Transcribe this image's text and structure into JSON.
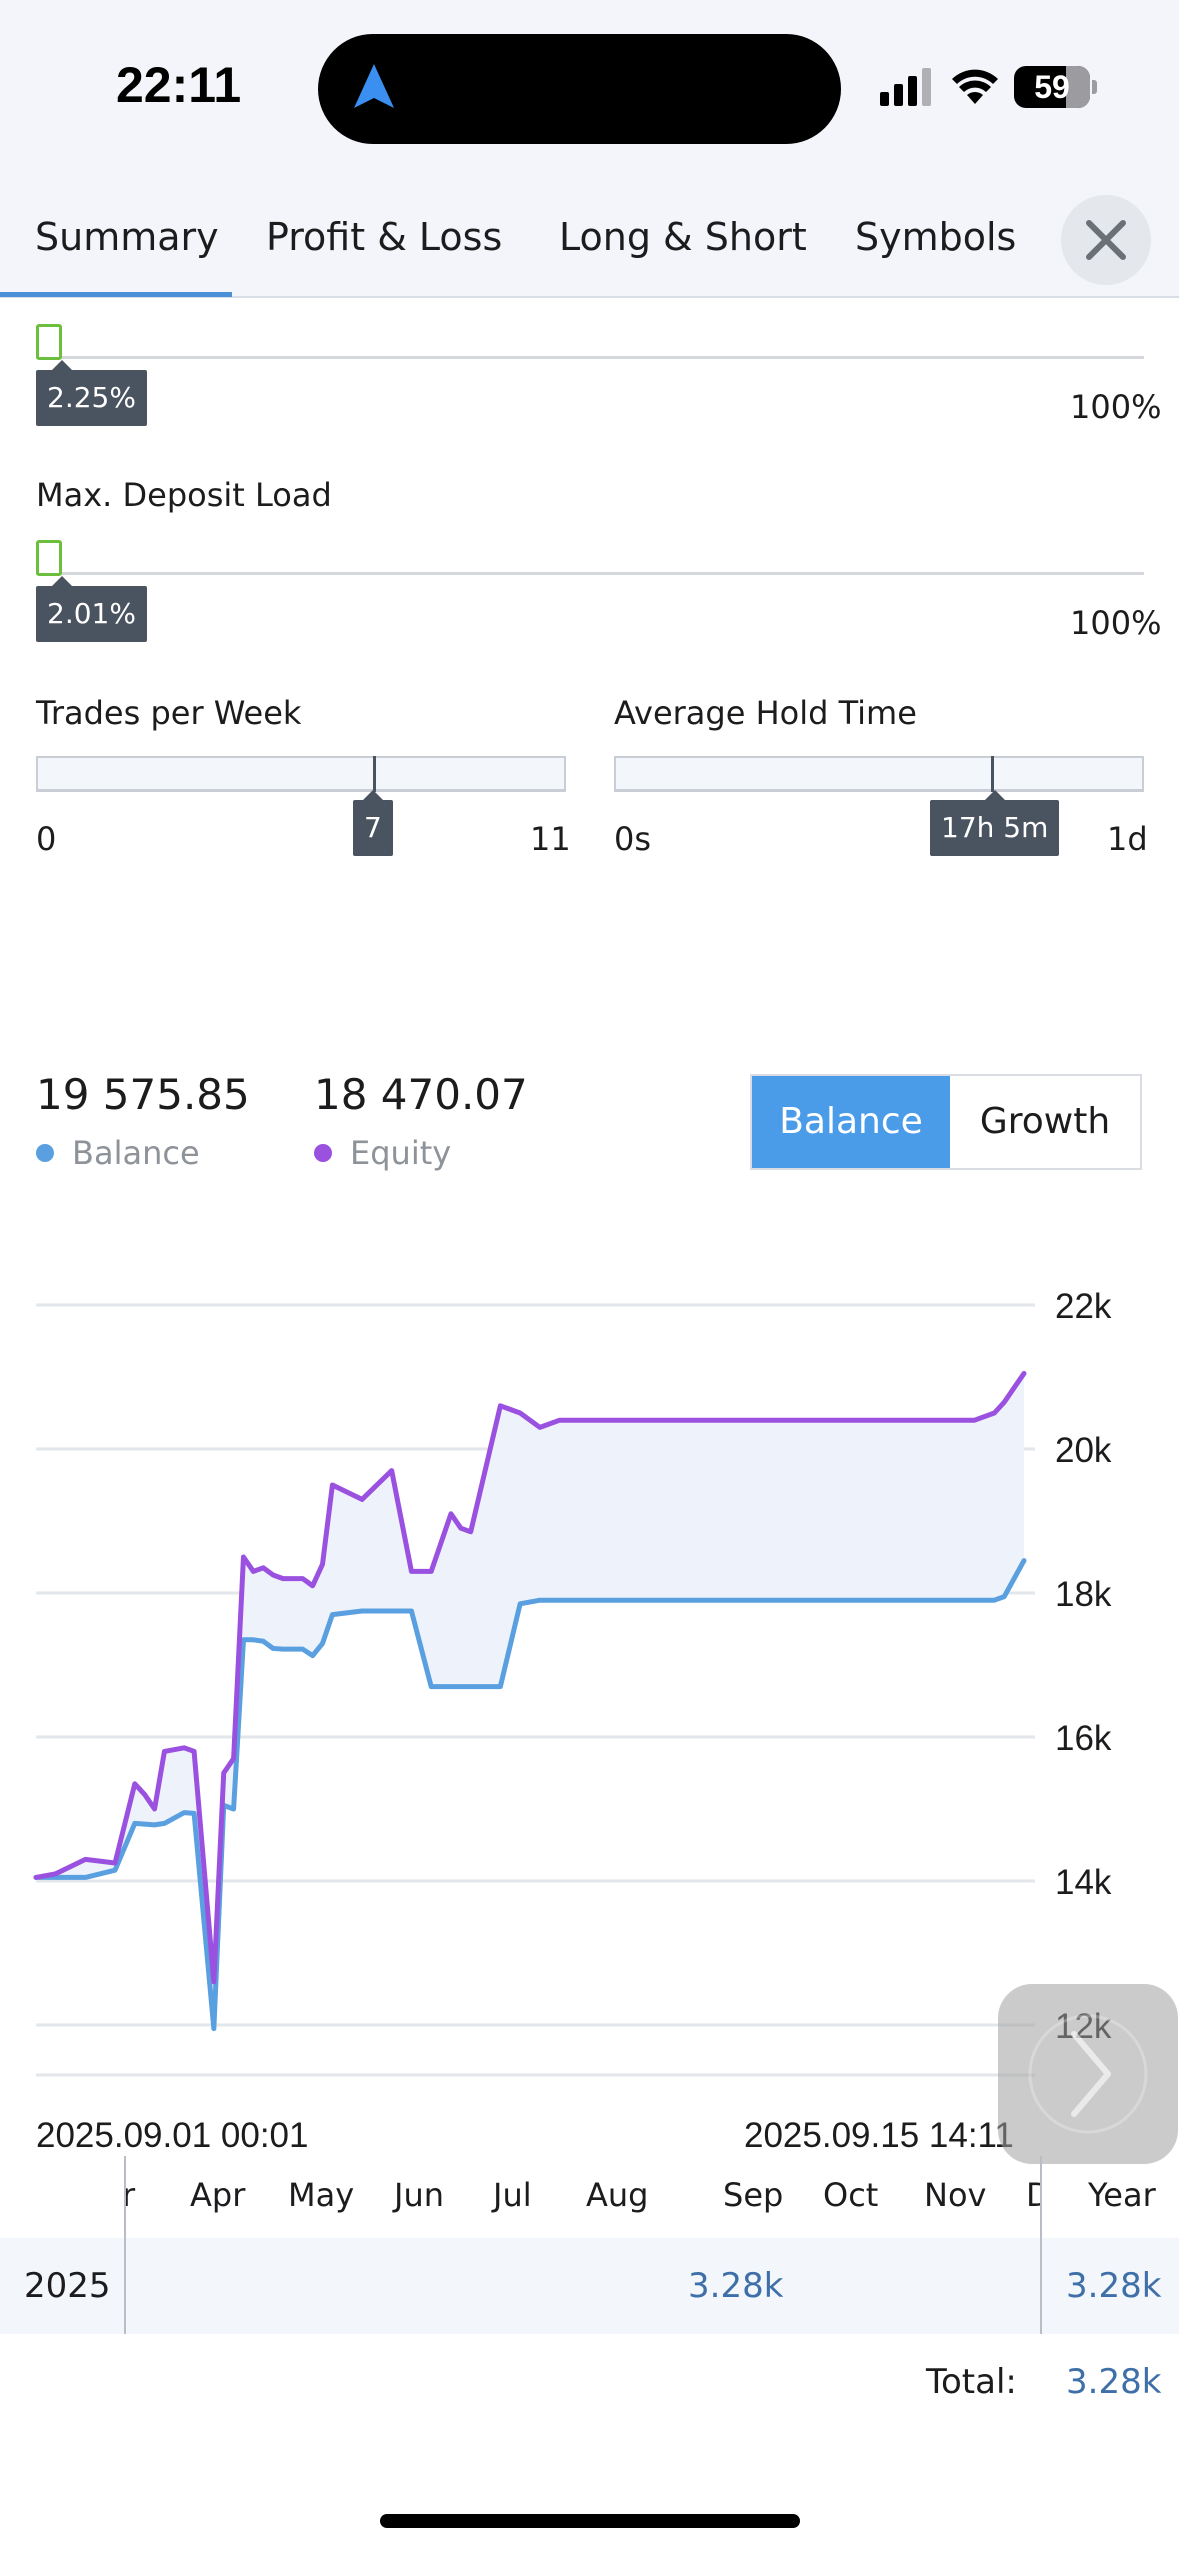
{
  "status_bar": {
    "time": "22:11",
    "battery": "59"
  },
  "tabs": [
    {
      "label": "Summary",
      "active": true
    },
    {
      "label": "Profit & Loss",
      "active": false
    },
    {
      "label": "Long & Short",
      "active": false
    },
    {
      "label": "Symbols",
      "active": false
    }
  ],
  "sliders": {
    "first": {
      "value_label": "2.25%",
      "max_label": "100%",
      "value_percent": 2.25
    },
    "deposit_load": {
      "title": "Max. Deposit Load",
      "value_label": "2.01%",
      "max_label": "100%",
      "value_percent": 2.01
    },
    "trades_per_week": {
      "title": "Trades per Week",
      "min_label": "0",
      "max_label": "11",
      "value_label": "7",
      "value": 7,
      "max": 11
    },
    "avg_hold_time": {
      "title": "Average Hold Time",
      "min_label": "0s",
      "max_label": "1d",
      "value_label": "17h 5m",
      "value_fraction": 0.712
    }
  },
  "stats": {
    "balance_value": "19 575.85",
    "balance_label": "Balance",
    "equity_value": "18 470.07",
    "equity_label": "Equity"
  },
  "toggle": {
    "active_label": "Balance",
    "inactive_label": "Growth"
  },
  "colors": {
    "balance": "#5aa0e0",
    "equity": "#9b51e0",
    "accent": "#4a9be8",
    "link_blue": "#3e6fa8"
  },
  "chart_data": {
    "type": "line",
    "x_start_label": "2025.09.01 00:01",
    "x_end_label": "2025.09.15 14:11",
    "y_tick_labels": [
      "22k",
      "20k",
      "18k",
      "16k",
      "14k",
      "12k"
    ],
    "y_ticks": [
      22000,
      20000,
      18000,
      16000,
      14000,
      12000
    ],
    "ylim": [
      11000,
      22000
    ],
    "x": [
      0,
      2,
      5,
      8,
      10,
      11,
      12,
      13,
      15,
      16,
      18,
      19,
      20,
      21,
      22,
      23,
      24,
      25,
      26,
      27,
      28,
      29,
      30,
      33,
      36,
      38,
      40,
      42,
      43,
      44,
      47,
      49,
      51,
      53,
      55,
      57,
      58,
      60,
      63,
      65,
      67,
      69,
      71,
      73,
      75,
      77,
      79,
      81,
      83,
      85,
      87,
      89,
      91,
      93,
      95,
      97,
      98,
      100
    ],
    "series": [
      {
        "name": "Balance",
        "values": [
          14050,
          14050,
          14050,
          14150,
          14800,
          14790,
          14780,
          14800,
          14950,
          14940,
          11950,
          15050,
          15000,
          17350,
          17350,
          17330,
          17230,
          17220,
          17220,
          17220,
          17130,
          17300,
          17700,
          17750,
          17750,
          17750,
          16700,
          16700,
          16700,
          16700,
          16700,
          17850,
          17900,
          17900,
          17900,
          17900,
          17900,
          17900,
          17900,
          17900,
          17900,
          17900,
          17900,
          17900,
          17900,
          17900,
          17900,
          17900,
          17900,
          17900,
          17900,
          17900,
          17900,
          17900,
          17900,
          17900,
          17950,
          18450
        ]
      },
      {
        "name": "Equity",
        "values": [
          14050,
          14100,
          14300,
          14250,
          15350,
          15200,
          15000,
          15800,
          15850,
          15800,
          12600,
          15500,
          15700,
          18500,
          18300,
          18350,
          18250,
          18200,
          18200,
          18200,
          18100,
          18400,
          19500,
          19300,
          19700,
          18300,
          18300,
          19100,
          18900,
          18850,
          20600,
          20500,
          20300,
          20400,
          20400,
          20400,
          20400,
          20400,
          20400,
          20400,
          20400,
          20400,
          20400,
          20400,
          20400,
          20400,
          20400,
          20400,
          20400,
          20400,
          20400,
          20400,
          20400,
          20400,
          20400,
          20500,
          20650,
          21050
        ]
      }
    ],
    "grid": true
  },
  "months": [
    "r",
    "Apr",
    "May",
    "Jun",
    "Jul",
    "Aug",
    "Sep",
    "Oct",
    "Nov",
    "D"
  ],
  "year_table": {
    "year_header": "Year",
    "row_year": "2025",
    "row_value": "3.28k",
    "row_year_total": "3.28k",
    "total_label": "Total:",
    "total_value": "3.28k"
  }
}
